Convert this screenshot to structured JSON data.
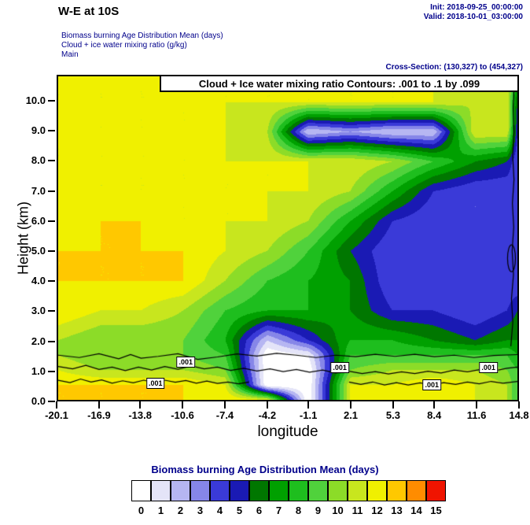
{
  "header": {
    "title": "W-E at 10S",
    "init_line": "Init: 2018-09-25_00:00:00",
    "valid_line": "Valid: 2018-10-01_03:00:00",
    "desc_lines": [
      "Biomass burning Age Distribution Mean   (days)",
      "Cloud + ice water mixing ratio   (g/kg)",
      "Main"
    ],
    "cross_section": "Cross-Section: (130,327) to (454,327)"
  },
  "plot": {
    "contour_header": "Cloud + Ice water mixing ratio Contours: .001 to .1 by .099",
    "xlabel": "longitude",
    "ylabel": "Height (km)"
  },
  "colorbar": {
    "title": "Biomass burning Age Distribution Mean  (days)",
    "labels": [
      "0",
      "1",
      "2",
      "3",
      "4",
      "5",
      "6",
      "7",
      "8",
      "9",
      "10",
      "11",
      "12",
      "13",
      "14",
      "15"
    ]
  },
  "chart_data": {
    "type": "heatmap",
    "title": "Biomass burning Age Distribution Mean (days), W-E cross-section at 10S",
    "xlabel": "longitude",
    "ylabel": "Height (km)",
    "unit": "days",
    "x_range": [
      -20.1,
      14.8
    ],
    "y_range": [
      0,
      10.86
    ],
    "x_ticks": [
      "-20.1",
      "-16.9",
      "-13.8",
      "-10.6",
      "-7.4",
      "-4.2",
      "-1.1",
      "2.1",
      "5.3",
      "8.4",
      "11.6",
      "14.8"
    ],
    "y_ticks": [
      "0.0",
      "1.0",
      "2.0",
      "3.0",
      "4.0",
      "5.0",
      "6.0",
      "7.0",
      "8.0",
      "9.0",
      "10.0"
    ],
    "levels": [
      0,
      1,
      2,
      3,
      4,
      5,
      6,
      7,
      8,
      9,
      10,
      11,
      12,
      13,
      14,
      15
    ],
    "palette": [
      "#FFFFFF",
      "#E4E4F8",
      "#B6B6F2",
      "#8686E8",
      "#3A3AD8",
      "#1A1AB4",
      "#007700",
      "#00A000",
      "#1EBE1E",
      "#50D23C",
      "#8CDC28",
      "#C8E61E",
      "#F0F000",
      "#FFC800",
      "#FF8C00",
      "#F01400"
    ],
    "grid": {
      "lons": [
        -20.1,
        -16.9,
        -13.8,
        -10.6,
        -7.4,
        -4.2,
        -1.1,
        2.1,
        5.3,
        8.4,
        11.6,
        14.0,
        14.8
      ],
      "heights": [
        0,
        0.5,
        1.0,
        1.5,
        2.0,
        3.0,
        4.0,
        5.0,
        6.0,
        7.0,
        8.0,
        9.0,
        10.0,
        10.9
      ],
      "values": [
        [
          13,
          13,
          13,
          13,
          13,
          12,
          0,
          12,
          13,
          13,
          12,
          11,
          9
        ],
        [
          13,
          13,
          13,
          13,
          12,
          0,
          0,
          12,
          12,
          13,
          12,
          11,
          9
        ],
        [
          12,
          11,
          11,
          11,
          10,
          0,
          0,
          10,
          11,
          11,
          11,
          10,
          9
        ],
        [
          11,
          10,
          10,
          10,
          9,
          0,
          1,
          9,
          9,
          9,
          9,
          9,
          8
        ],
        [
          11,
          10,
          10,
          10,
          8,
          2,
          5,
          8,
          8,
          7,
          6,
          7,
          7
        ],
        [
          13,
          12,
          12,
          11,
          9,
          8,
          8,
          7,
          5,
          5,
          4,
          5,
          6
        ],
        [
          13,
          13,
          13,
          13,
          11,
          9,
          8,
          7,
          4,
          5,
          4,
          4,
          4
        ],
        [
          13,
          13,
          13,
          13,
          12,
          11,
          9,
          6,
          4,
          4,
          5,
          4,
          4
        ],
        [
          12,
          13,
          13,
          12,
          12,
          12,
          11,
          8,
          5,
          4,
          4,
          4,
          4
        ],
        [
          12,
          12,
          12,
          12,
          12,
          12,
          12,
          11,
          8,
          5,
          4,
          4,
          4
        ],
        [
          12,
          12,
          12,
          12,
          12,
          12,
          12,
          12,
          11,
          9,
          7,
          6,
          4
        ],
        [
          12,
          12,
          12,
          12,
          12,
          11,
          2,
          3,
          2,
          2,
          12,
          12,
          5
        ],
        [
          12,
          12,
          12,
          12,
          12,
          12,
          12,
          12,
          12,
          12,
          11,
          12,
          6
        ],
        [
          12,
          12,
          12,
          12,
          12,
          12,
          12,
          12,
          12,
          12,
          12,
          12,
          8
        ]
      ]
    },
    "contour_levels_note": ".001 to .1 by .099",
    "contour_labels": [
      {
        "text": ".001",
        "lon": -10.4,
        "height": 1.27
      },
      {
        "text": ".001",
        "lon": -12.7,
        "height": 0.55
      },
      {
        "text": ".001",
        "lon": 1.3,
        "height": 1.08
      },
      {
        "text": ".001",
        "lon": 8.3,
        "height": 0.5
      },
      {
        "text": ".001",
        "lon": 12.6,
        "height": 1.08
      }
    ],
    "contour_lines": [
      {
        "type": "polyline",
        "points": [
          [
            -20.1,
            1.5
          ],
          [
            -18.5,
            1.42
          ],
          [
            -17,
            1.55
          ],
          [
            -15.5,
            1.38
          ],
          [
            -14.6,
            1.52
          ],
          [
            -13.8,
            1.4
          ],
          [
            -12.5,
            1.46
          ],
          [
            -11,
            1.55
          ],
          [
            -9.5,
            1.36
          ],
          [
            -8,
            1.44
          ],
          [
            -6.5,
            1.54
          ],
          [
            -5,
            1.47
          ],
          [
            -3.5,
            1.56
          ],
          [
            -2,
            1.5
          ],
          [
            -0.5,
            1.42
          ],
          [
            1,
            1.5
          ],
          [
            2.5,
            1.45
          ],
          [
            4,
            1.53
          ],
          [
            5.5,
            1.46
          ],
          [
            7,
            1.53
          ],
          [
            8.5,
            1.45
          ],
          [
            10,
            1.5
          ],
          [
            11.5,
            1.42
          ],
          [
            13,
            1.49
          ],
          [
            14.8,
            1.52
          ]
        ]
      },
      {
        "type": "polyline",
        "points": [
          [
            -20.1,
            1.12
          ],
          [
            -19,
            1.04
          ],
          [
            -18,
            1.16
          ],
          [
            -17,
            1.02
          ],
          [
            -16,
            1.1
          ],
          [
            -15,
            0.98
          ],
          [
            -14,
            1.1
          ],
          [
            -13,
            1.0
          ],
          [
            -12,
            1.12
          ],
          [
            -11,
            1.03
          ],
          [
            -10,
            1.14
          ],
          [
            -9,
            1.04
          ],
          [
            -8,
            1.1
          ],
          [
            -7,
            0.99
          ],
          [
            -6,
            1.06
          ],
          [
            -5,
            0.97
          ],
          [
            -4,
            1.04
          ],
          [
            -3,
            0.95
          ],
          [
            -2,
            1.02
          ],
          [
            -1,
            0.93
          ],
          [
            0,
            1.0
          ],
          [
            1,
            0.9
          ],
          [
            2,
            0.96
          ],
          [
            3,
            0.88
          ],
          [
            4,
            0.95
          ],
          [
            5,
            0.87
          ],
          [
            6,
            0.94
          ],
          [
            7,
            0.88
          ],
          [
            8,
            0.96
          ],
          [
            9,
            0.9
          ],
          [
            10,
            1.0
          ],
          [
            11,
            0.94
          ],
          [
            12,
            1.02
          ],
          [
            13,
            0.97
          ],
          [
            14,
            1.06
          ],
          [
            14.8,
            1.1
          ]
        ]
      },
      {
        "type": "polyline",
        "points": [
          [
            -20.1,
            0.66
          ],
          [
            -19.2,
            0.58
          ],
          [
            -18.4,
            0.7
          ],
          [
            -17.6,
            0.6
          ],
          [
            -16.8,
            0.67
          ],
          [
            -16,
            0.56
          ],
          [
            -15.2,
            0.64
          ],
          [
            -14.4,
            0.57
          ],
          [
            -13.6,
            0.66
          ],
          [
            -12.8,
            0.58
          ],
          [
            -12,
            0.66
          ],
          [
            -11.2,
            0.59
          ],
          [
            -10.4,
            0.65
          ],
          [
            -9.6,
            0.56
          ],
          [
            -8.8,
            0.63
          ],
          [
            -8,
            0.55
          ],
          [
            -7.2,
            0.6
          ],
          [
            -6.4,
            0.54
          ],
          [
            -5.6,
            0.6
          ]
        ]
      },
      {
        "type": "polyline",
        "points": [
          [
            2,
            0.6
          ],
          [
            2.9,
            0.52
          ],
          [
            3.8,
            0.6
          ],
          [
            4.7,
            0.5
          ],
          [
            5.6,
            0.58
          ],
          [
            6.5,
            0.5
          ],
          [
            7.4,
            0.57
          ],
          [
            8.3,
            0.5
          ],
          [
            9.2,
            0.58
          ],
          [
            10.1,
            0.52
          ],
          [
            11,
            0.6
          ],
          [
            11.9,
            0.54
          ],
          [
            12.8,
            0.62
          ],
          [
            13.7,
            0.56
          ],
          [
            14.8,
            0.62
          ]
        ]
      },
      {
        "type": "polyline",
        "points": [
          [
            14.3,
            1.8
          ],
          [
            14.45,
            2.6
          ],
          [
            14.35,
            3.4
          ],
          [
            14.5,
            4.2
          ],
          [
            14.4,
            5.0
          ],
          [
            14.52,
            5.8
          ],
          [
            14.42,
            6.6
          ],
          [
            14.54,
            7.4
          ],
          [
            14.44,
            8.2
          ],
          [
            14.54,
            9.0
          ],
          [
            14.48,
            9.8
          ],
          [
            14.55,
            10.5
          ]
        ]
      },
      {
        "type": "ellipse",
        "cx": 14.35,
        "cy": 4.75,
        "rx": 0.3,
        "ry": 0.45
      }
    ]
  }
}
